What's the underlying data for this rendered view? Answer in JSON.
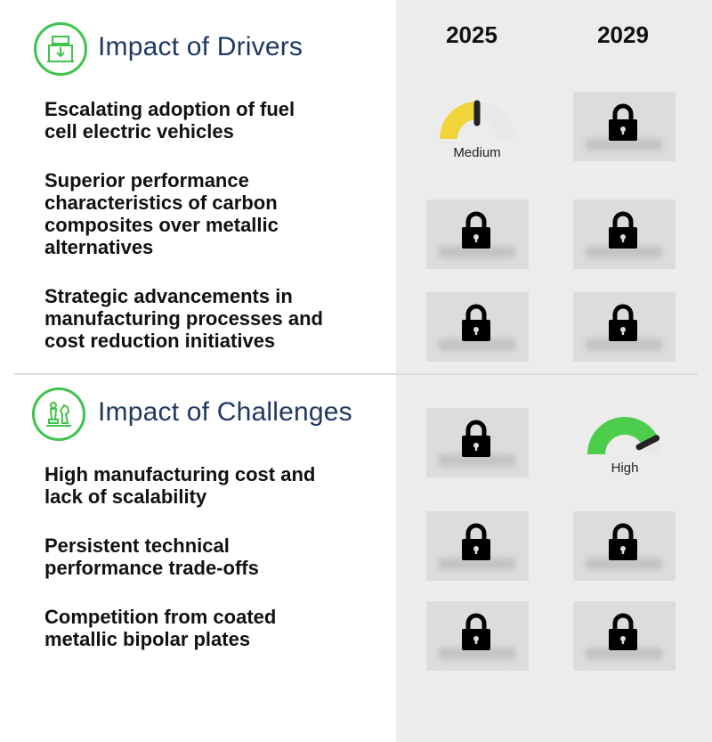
{
  "columns": {
    "year_a": "2025",
    "year_b": "2029"
  },
  "drivers": {
    "title": "Impact of Drivers",
    "icon": "factory-icon",
    "rows": [
      {
        "lines": [
          "Escalating adoption of fuel",
          "cell electric vehicles"
        ],
        "cell_2025": {
          "state": "gauge",
          "label": "Medium",
          "level": 0.5,
          "color": "#f0d43a"
        },
        "cell_2029": {
          "state": "locked"
        }
      },
      {
        "lines": [
          "Superior performance",
          "characteristics of carbon",
          "composites over metallic",
          "alternatives"
        ],
        "cell_2025": {
          "state": "locked"
        },
        "cell_2029": {
          "state": "locked"
        }
      },
      {
        "lines": [
          "Strategic advancements in",
          "manufacturing processes and",
          "cost reduction initiatives"
        ],
        "cell_2025": {
          "state": "locked"
        },
        "cell_2029": {
          "state": "locked"
        }
      }
    ]
  },
  "challenges": {
    "title": "Impact of Challenges",
    "icon": "chess-pieces-icon",
    "rows": [
      {
        "lines": [
          "High manufacturing cost and",
          "lack of scalability"
        ],
        "cell_2025": {
          "state": "locked"
        },
        "cell_2029": {
          "state": "gauge",
          "label": "High",
          "level": 0.85,
          "color": "#4ccd4c"
        }
      },
      {
        "lines": [
          "Persistent technical",
          "performance trade-offs"
        ],
        "cell_2025": {
          "state": "locked"
        },
        "cell_2029": {
          "state": "locked"
        }
      },
      {
        "lines": [
          "Competition from coated",
          "metallic bipolar plates"
        ],
        "cell_2025": {
          "state": "locked"
        },
        "cell_2029": {
          "state": "locked"
        }
      }
    ]
  },
  "colors": {
    "accent_green": "#3fc34a",
    "title_blue": "#1f3864",
    "panel_gray": "#ececec"
  }
}
